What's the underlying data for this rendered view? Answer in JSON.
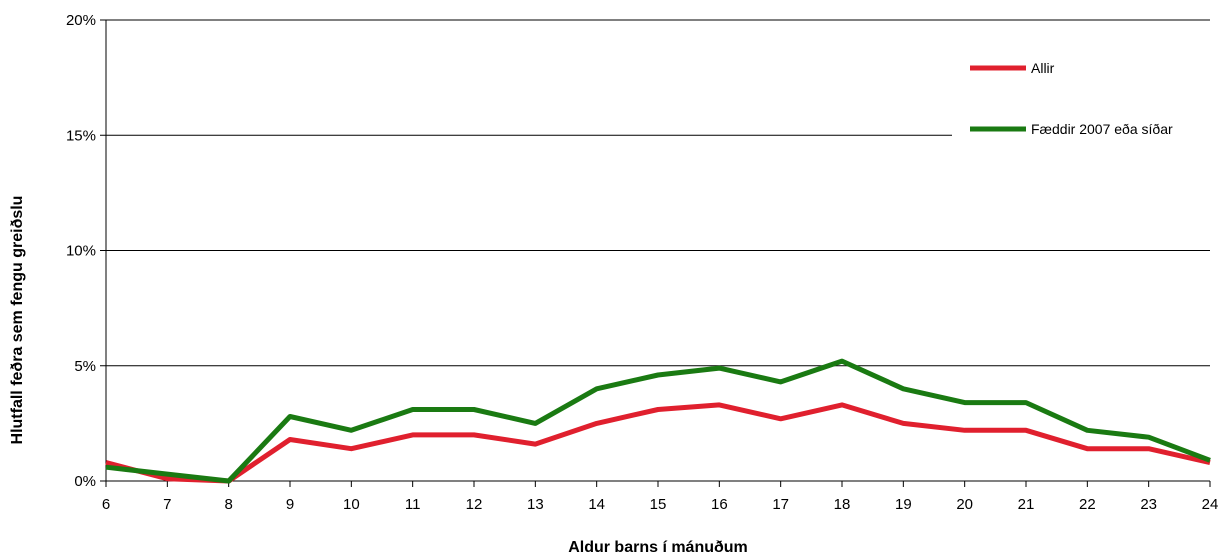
{
  "chart_data": {
    "type": "line",
    "xlabel": "Aldur barns í mánuðum",
    "ylabel": "Hlutfall feðra sem fengu greiðslu",
    "x": [
      6,
      7,
      8,
      9,
      10,
      11,
      12,
      13,
      14,
      15,
      16,
      17,
      18,
      19,
      20,
      21,
      22,
      23,
      24
    ],
    "x_tick_labels": [
      "6",
      "7",
      "8",
      "9",
      "10",
      "11",
      "12",
      "13",
      "14",
      "15",
      "16",
      "17",
      "18",
      "19",
      "20",
      "21",
      "22",
      "23",
      "24"
    ],
    "ylim": [
      0,
      20
    ],
    "y_ticks": [
      0,
      5,
      10,
      15,
      20
    ],
    "y_tick_labels": [
      "0%",
      "5%",
      "10%",
      "15%",
      "20%"
    ],
    "grid": "horizontal",
    "legend_position": "top-right",
    "series": [
      {
        "name": "Allir",
        "color": "#e0202e",
        "values": [
          0.8,
          0.1,
          0.0,
          1.8,
          1.4,
          2.0,
          2.0,
          1.6,
          2.5,
          3.1,
          3.3,
          2.7,
          3.3,
          2.5,
          2.2,
          2.2,
          1.4,
          1.4,
          0.8
        ]
      },
      {
        "name": "Fæddir 2007 eða síðar",
        "color": "#1a7a12",
        "values": [
          0.6,
          0.3,
          0.0,
          2.8,
          2.2,
          3.1,
          3.1,
          2.5,
          4.0,
          4.6,
          4.9,
          4.3,
          5.2,
          4.0,
          3.4,
          3.4,
          2.2,
          1.9,
          0.9
        ]
      }
    ]
  }
}
